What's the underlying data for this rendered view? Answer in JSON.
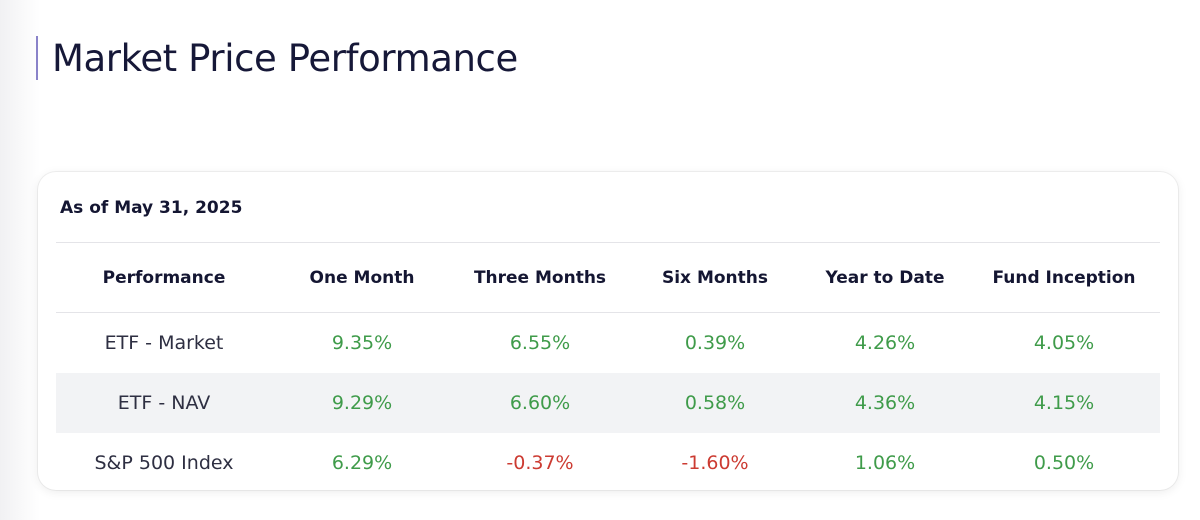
{
  "page": {
    "title": "Market Price Performance"
  },
  "card": {
    "as_of": "As of May 31, 2025"
  },
  "table": {
    "headers": [
      "Performance",
      "One Month",
      "Three Months",
      "Six Months",
      "Year to Date",
      "Fund Inception"
    ],
    "rows": [
      {
        "label": "ETF - Market",
        "values": [
          "9.35%",
          "6.55%",
          "0.39%",
          "4.26%",
          "4.05%"
        ]
      },
      {
        "label": "ETF - NAV",
        "values": [
          "9.29%",
          "6.60%",
          "0.58%",
          "4.36%",
          "4.15%"
        ]
      },
      {
        "label": "S&P 500 Index",
        "values": [
          "6.29%",
          "-0.37%",
          "-1.60%",
          "1.06%",
          "0.50%"
        ]
      }
    ]
  },
  "colors": {
    "positive": "#3f9b4a",
    "negative": "#cc3b32",
    "title_accent": "#8a83c9",
    "striped_row": "#f2f3f5"
  }
}
